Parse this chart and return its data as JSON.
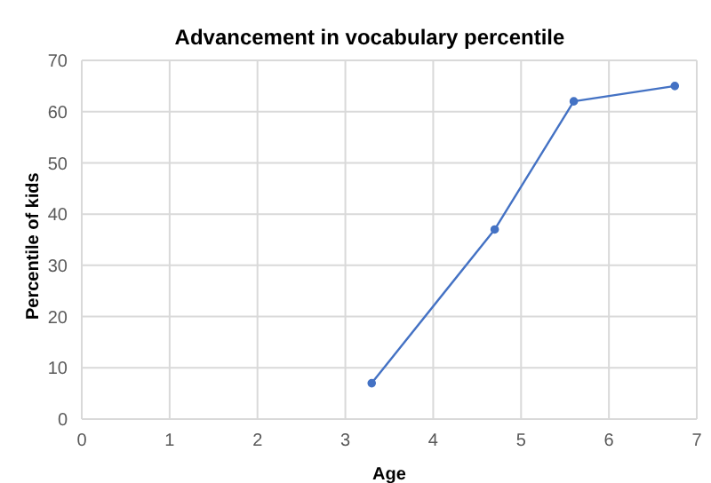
{
  "chart_data": {
    "type": "line",
    "title": "Advancement in vocabulary percentile",
    "xlabel": "Age",
    "ylabel": "Percentile of kids",
    "x": [
      3.3,
      4.7,
      5.6,
      6.75
    ],
    "series": [
      {
        "color": "#4472c4",
        "values": [
          7,
          37,
          62,
          65
        ]
      }
    ],
    "xlim": [
      0,
      7
    ],
    "xticks": [
      0,
      1,
      2,
      3,
      4,
      5,
      6,
      7
    ],
    "ylim": [
      0,
      70
    ],
    "yticks": [
      0,
      10,
      20,
      30,
      40,
      50,
      60,
      70
    ],
    "grid": true,
    "marker": "circle",
    "line_style": "solid"
  }
}
